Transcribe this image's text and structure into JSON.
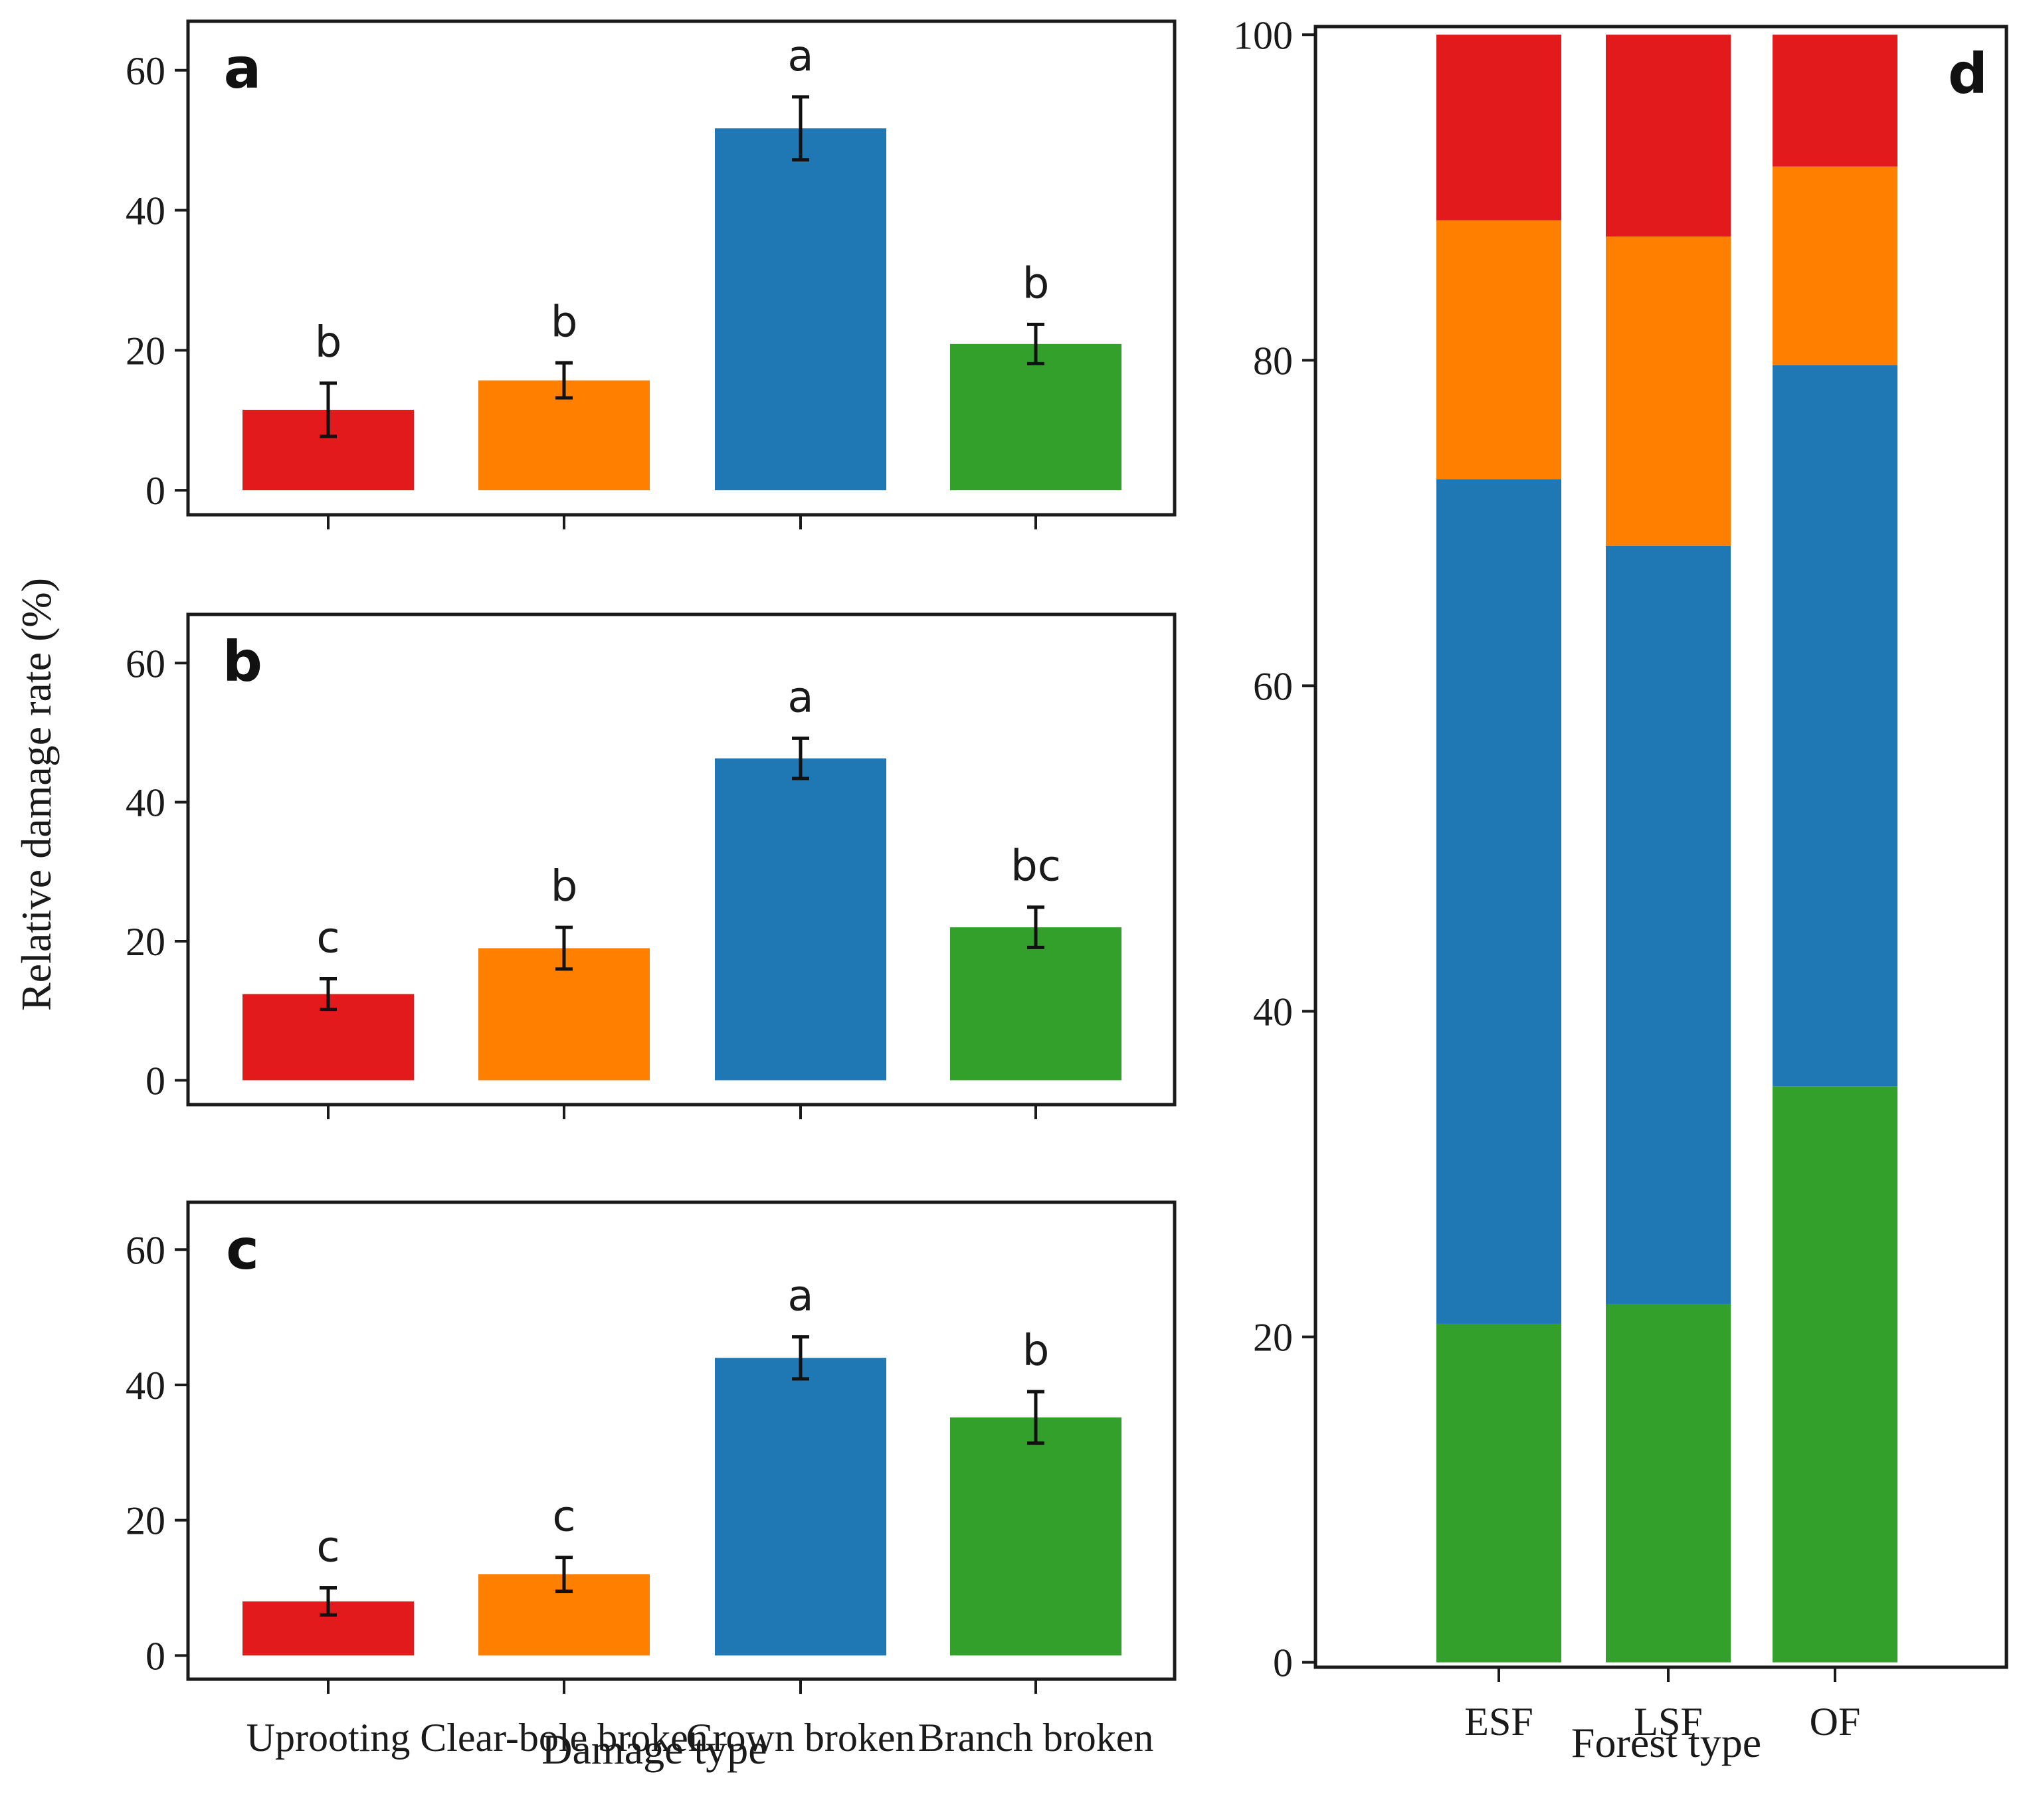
{
  "figure": {
    "ylabel": "Relative damage rate (%)",
    "left_xlabel": "Damage type",
    "right_xlabel": "Forest type"
  },
  "colors": {
    "Uprooting": "#e31a1c",
    "Clear-bole broken": "#ff7f00",
    "Crown broken": "#1f78b4",
    "Branch broken": "#33a02c"
  },
  "chart_data": [
    {
      "panel": "a",
      "type": "bar",
      "categories": [
        "Uprooting",
        "Clear-bole broken",
        "Crown broken",
        "Branch broken"
      ],
      "values": [
        11.5,
        15.7,
        51.7,
        20.9
      ],
      "errors": [
        3.8,
        2.5,
        4.5,
        2.8
      ],
      "significance": [
        "b",
        "b",
        "a",
        "b"
      ],
      "xlabel": "",
      "ylabel": "",
      "ylim": [
        -3.5,
        67
      ],
      "yticks": [
        0,
        20,
        40,
        60
      ]
    },
    {
      "panel": "b",
      "type": "bar",
      "categories": [
        "Uprooting",
        "Clear-bole broken",
        "Crown broken",
        "Branch broken"
      ],
      "values": [
        12.4,
        19.0,
        46.3,
        22.0
      ],
      "errors": [
        2.2,
        3.0,
        2.9,
        2.9
      ],
      "significance": [
        "c",
        "b",
        "a",
        "bc"
      ],
      "xlabel": "",
      "ylabel": "",
      "ylim": [
        -3.5,
        67
      ],
      "yticks": [
        0,
        20,
        40,
        60
      ]
    },
    {
      "panel": "c",
      "type": "bar",
      "categories": [
        "Uprooting",
        "Clear-bole broken",
        "Crown broken",
        "Branch broken"
      ],
      "values": [
        8.0,
        12.0,
        44.0,
        35.2
      ],
      "errors": [
        2.0,
        2.5,
        3.1,
        3.8
      ],
      "significance": [
        "c",
        "c",
        "a",
        "b"
      ],
      "xlabel": "Damage type",
      "ylabel": "",
      "ylim": [
        -3.5,
        67
      ],
      "yticks": [
        0,
        20,
        40,
        60
      ]
    },
    {
      "panel": "d",
      "type": "bar",
      "stacked": true,
      "categories": [
        "ESF",
        "LSF",
        "OF"
      ],
      "series": [
        {
          "values": [
            20.8,
            22.0,
            35.4
          ],
          "color": "#33a02c"
        },
        {
          "values": [
            51.9,
            46.6,
            44.3
          ],
          "color": "#1f78b4"
        },
        {
          "values": [
            15.9,
            19.0,
            12.2
          ],
          "color": "#ff7f00"
        },
        {
          "values": [
            11.4,
            12.4,
            8.1
          ],
          "color": "#e31a1c"
        }
      ],
      "xlabel": "Forest type",
      "ylabel": "",
      "ylim": [
        -0.3,
        100.5
      ],
      "yticks": [
        0,
        20,
        40,
        60,
        80,
        100
      ]
    }
  ]
}
